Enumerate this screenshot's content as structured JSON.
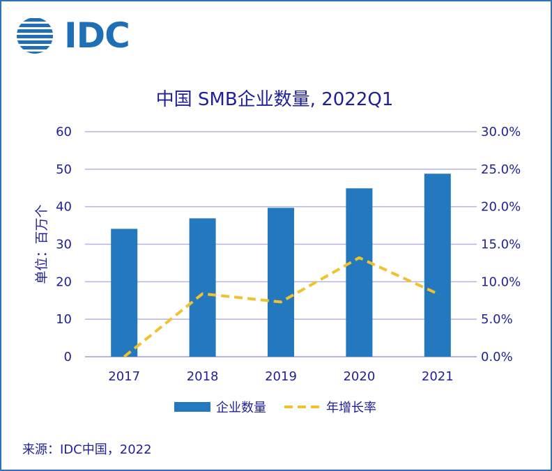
{
  "brand": {
    "logo_text": "IDC"
  },
  "colors": {
    "bar": "#2478BE",
    "line": "#F2C12E",
    "grid": "#B3B3E6",
    "text": "#1F1F99",
    "border": "#2E73B8"
  },
  "footnote": "来源：IDC中国，2022",
  "chart_data": {
    "type": "bar",
    "title": "中国 SMB企业数量, 2022Q1",
    "categories": [
      "2017",
      "2018",
      "2019",
      "2020",
      "2021"
    ],
    "ylabel": "单位：百万个",
    "ylim": [
      0,
      60
    ],
    "yticks": [
      "0",
      "10",
      "20",
      "30",
      "40",
      "50",
      "60"
    ],
    "y2lim": [
      0,
      30
    ],
    "y2ticks": [
      "0.0%",
      "5.0%",
      "10.0%",
      "15.0%",
      "20.0%",
      "25.0%",
      "30.0%"
    ],
    "grid": true,
    "legend_position": "bottom",
    "series": [
      {
        "name": "企业数量",
        "type": "bar",
        "axis": "left",
        "values": [
          34.1,
          36.9,
          39.7,
          44.9,
          48.8
        ]
      },
      {
        "name": "年增长率",
        "type": "line",
        "style": "dashed",
        "axis": "right",
        "values": [
          0.0,
          8.4,
          7.3,
          13.2,
          8.4
        ]
      }
    ]
  }
}
